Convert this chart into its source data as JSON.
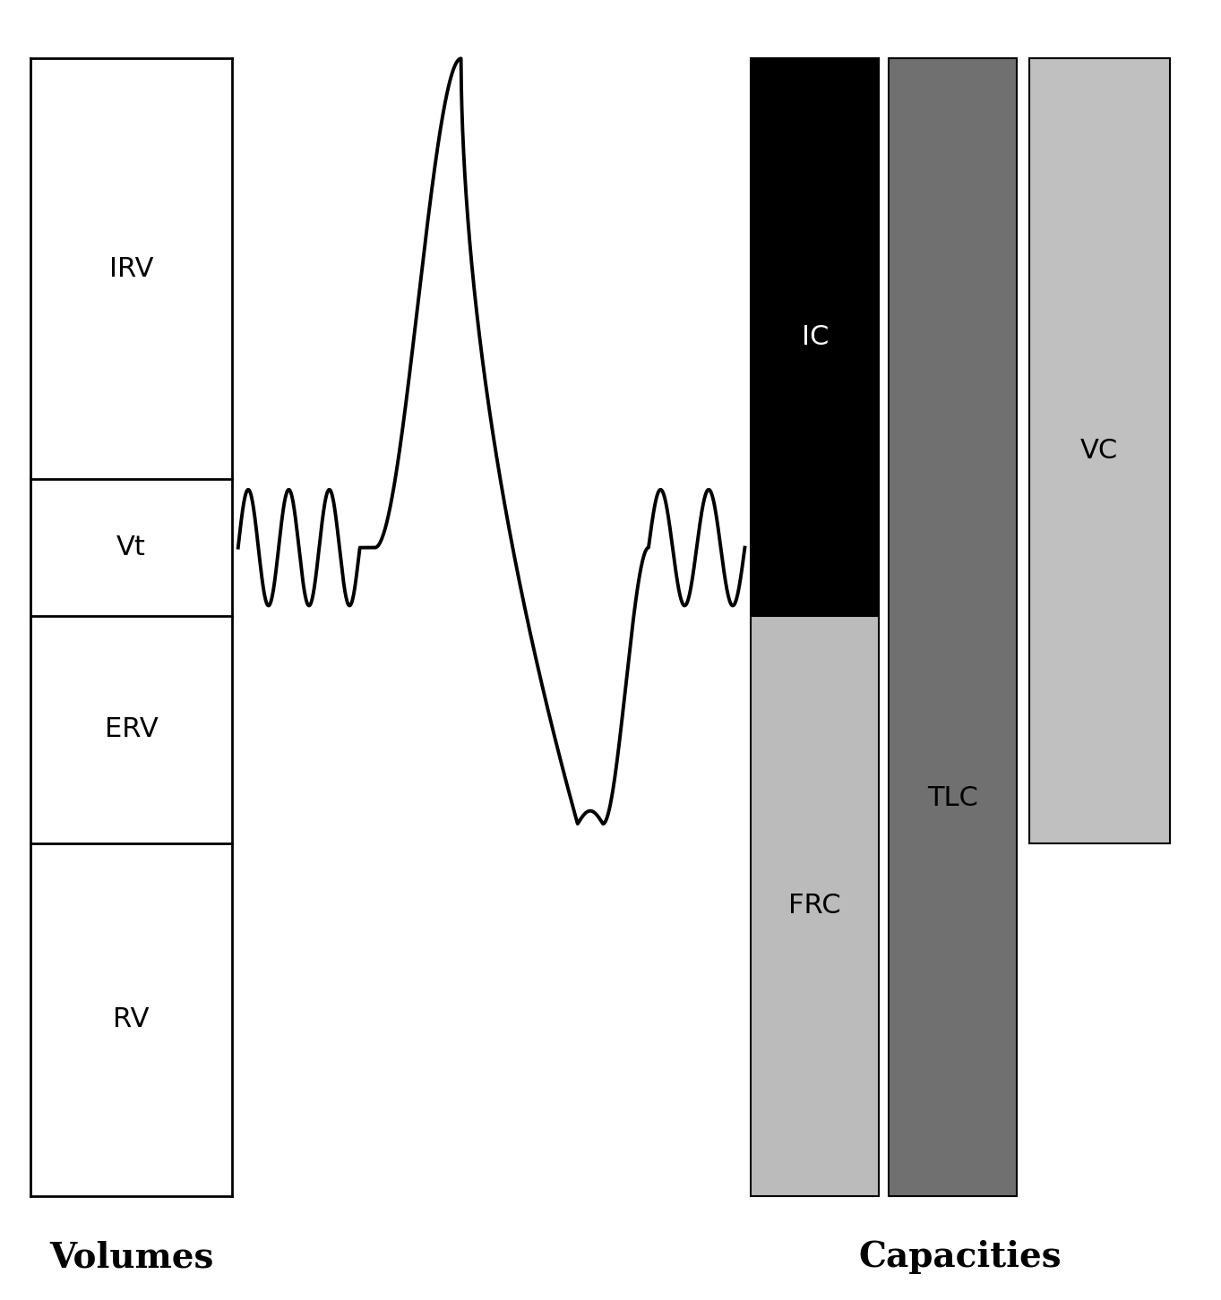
{
  "background_color": "#ffffff",
  "figure_width": 13.63,
  "figure_height": 14.52,
  "dpi": 100,
  "left_panel_label": "Volumes",
  "right_panel_label": "Capacities",
  "volume_labels": [
    "IRV",
    "Vt",
    "ERV",
    "RV"
  ],
  "volume_proportions": [
    0.37,
    0.12,
    0.2,
    0.31
  ],
  "label_fontsize": 22,
  "title_fontsize": 28,
  "line_color": "#000000",
  "line_width": 2.8,
  "ic_color": "#000000",
  "frc_color": "#bbbbbb",
  "tlc_color": "#707070",
  "vc_color": "#c0c0c0"
}
